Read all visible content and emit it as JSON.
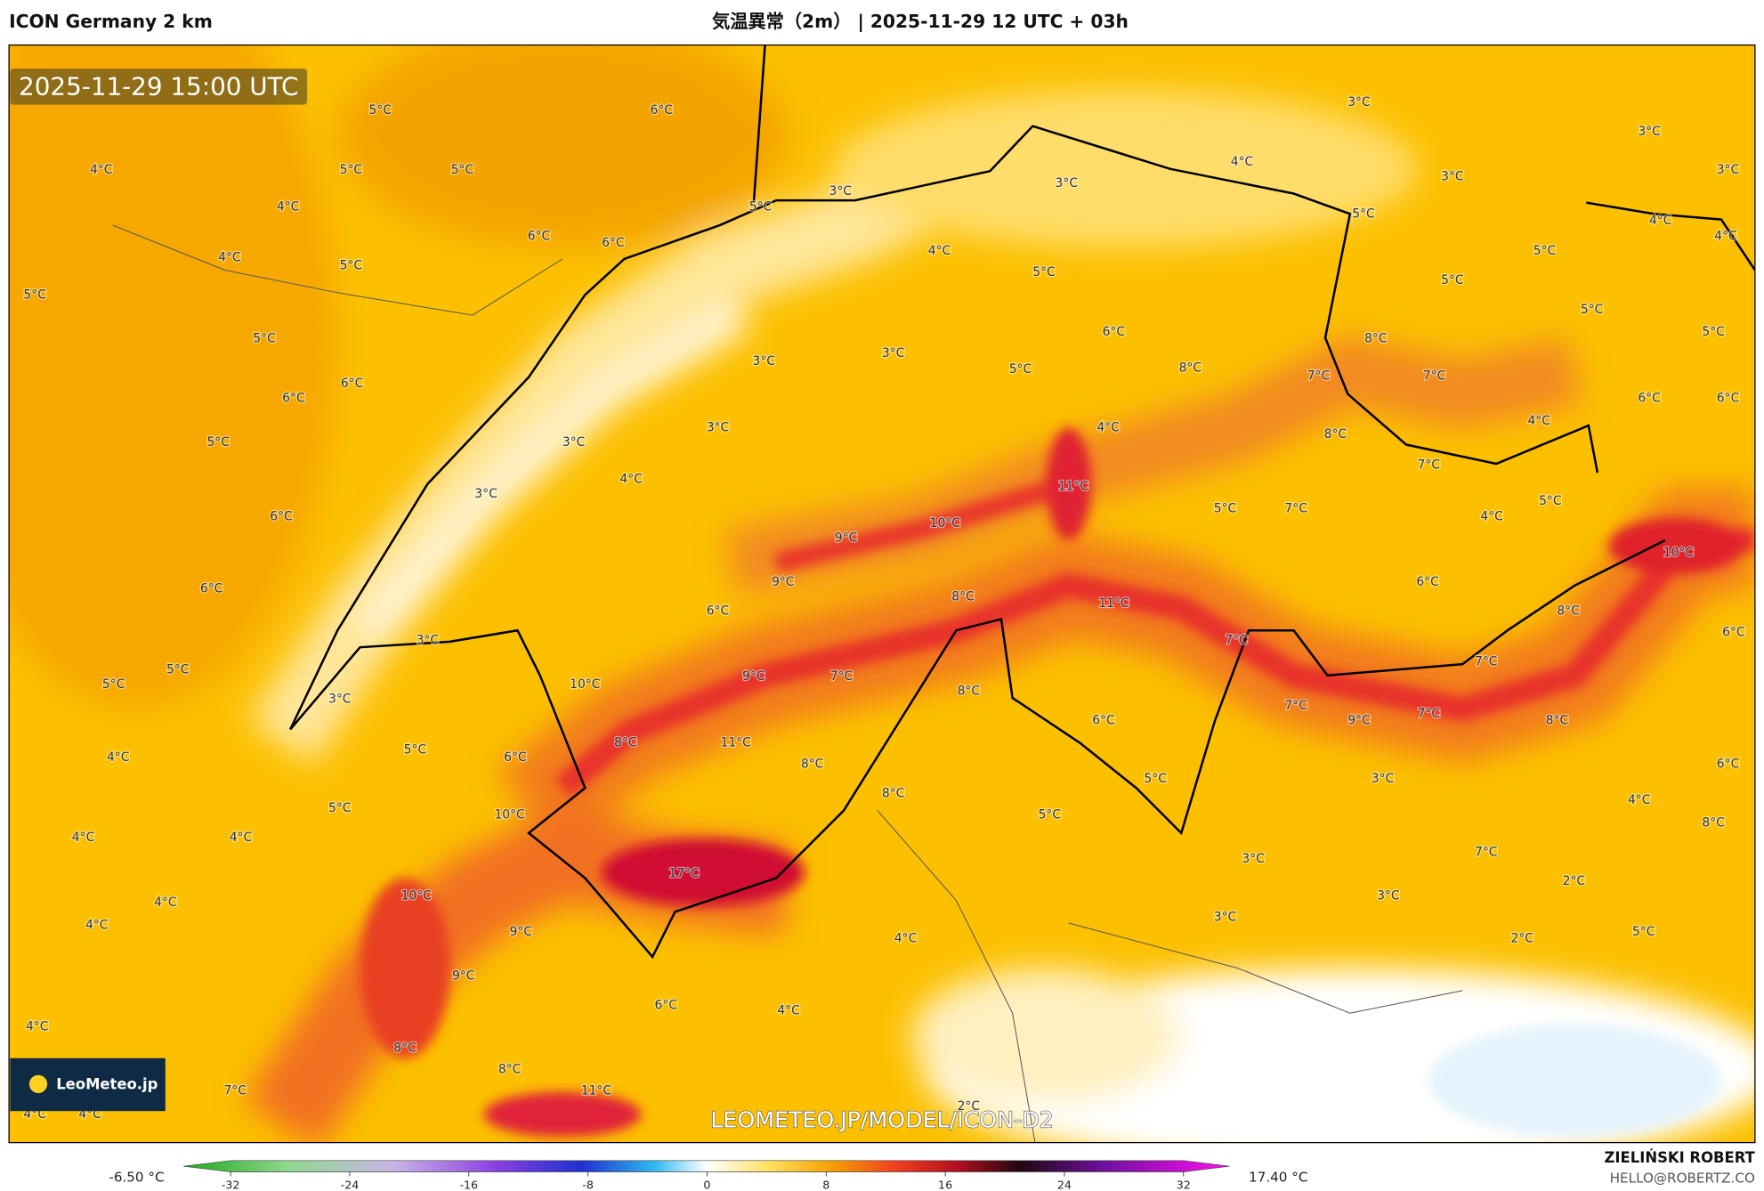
{
  "header": {
    "left": "ICON Germany 2 km",
    "center": "気温異常（2m） | 2025-11-29 12 UTC + 03h"
  },
  "map": {
    "timestamp": "2025-11-29 15:00 UTC",
    "logo": "LeoMeteo.jp",
    "watermark": "LEOMETEO.JP/MODEL/ICON-D2",
    "labels": [
      "5°C",
      "6°C",
      "4°C",
      "5°C",
      "5°C",
      "4°C",
      "6°C",
      "6°C",
      "5°C",
      "3°C",
      "3°C",
      "4°C",
      "3°C",
      "3°C",
      "3°C",
      "3°C",
      "5°C",
      "4°C",
      "4°C",
      "5°C",
      "5°C",
      "5°C",
      "5°C",
      "4°C",
      "5°C",
      "4°C",
      "5°C",
      "5°C",
      "5°C",
      "6°C",
      "8°C",
      "3°C",
      "3°C",
      "5°C",
      "8°C",
      "7°C",
      "7°C",
      "6°C",
      "6°C",
      "6°C",
      "6°C",
      "3°C",
      "3°C",
      "5°C",
      "4°C",
      "8°C",
      "4°C",
      "4°C",
      "3°C",
      "11°C",
      "7°C",
      "6°C",
      "10°C",
      "5°C",
      "7°C",
      "5°C",
      "4°C",
      "9°C",
      "10°C",
      "6°C",
      "9°C",
      "8°C",
      "11°C",
      "6°C",
      "8°C",
      "6°C",
      "6°C",
      "3°C",
      "7°C",
      "5°C",
      "5°C",
      "10°C",
      "9°C",
      "7°C",
      "8°C",
      "7°C",
      "3°C",
      "7°C",
      "9°C",
      "7°C",
      "8°C",
      "6°C",
      "8°C",
      "11°C",
      "4°C",
      "5°C",
      "6°C",
      "8°C",
      "6°C",
      "5°C",
      "3°C",
      "5°C",
      "10°C",
      "8°C",
      "5°C",
      "4°C",
      "8°C",
      "4°C",
      "4°C",
      "3°C",
      "7°C",
      "17°C",
      "2°C",
      "3°C",
      "4°C",
      "10°C",
      "4°C",
      "3°C",
      "9°C",
      "4°C",
      "2°C",
      "5°C",
      "9°C",
      "6°C",
      "4°C",
      "4°C",
      "8°C",
      "8°C",
      "7°C",
      "11°C",
      "2°C",
      "4°C",
      "4°C"
    ]
  },
  "colorbar": {
    "min_label": "-6.50 °C",
    "max_label": "17.40 °C",
    "ticks": [
      -32,
      -24,
      -16,
      -8,
      0,
      8,
      16,
      24,
      32
    ]
  },
  "footer": {
    "author": "ZIELIŃSKI ROBERT",
    "email": "HELLO@ROBERTZ.CO"
  }
}
